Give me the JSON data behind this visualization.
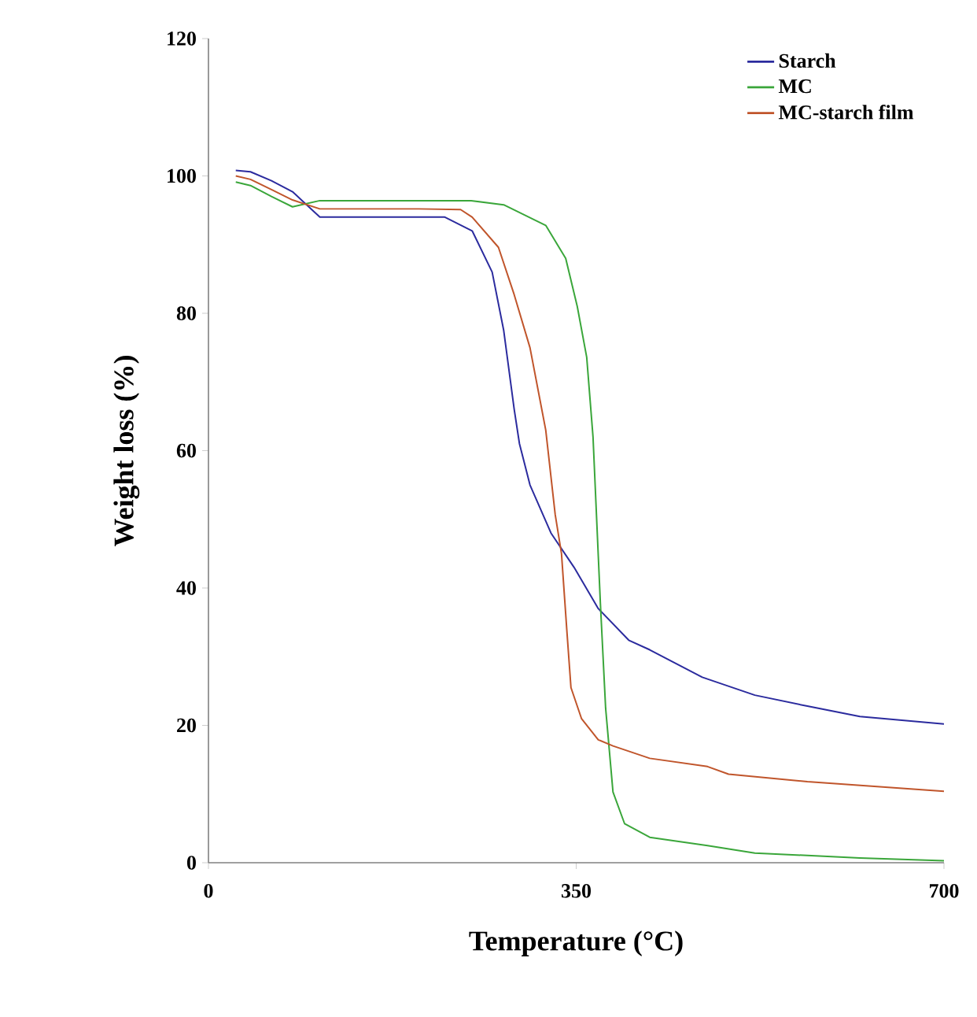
{
  "chart_data": {
    "type": "line",
    "xlabel": "Temperature (°C)",
    "ylabel": "Weight loss (%)",
    "xlim": [
      0,
      700
    ],
    "xticks": [
      0,
      350,
      700
    ],
    "ylim": [
      0,
      120
    ],
    "yticks": [
      0,
      20,
      40,
      60,
      80,
      100,
      120
    ],
    "grid": false,
    "legend": "top right",
    "marker": "none",
    "line_style": "solid",
    "series": [
      {
        "name": "Starch",
        "color": "#2b2b9e",
        "x": [
          26,
          40,
          60,
          80,
          106,
          150,
          195,
          225,
          251,
          270,
          281,
          291,
          296,
          306,
          326,
          348,
          371,
          400,
          420,
          470,
          520,
          570,
          620,
          700
        ],
        "values": [
          100.8,
          100.6,
          99.3,
          97.7,
          94,
          94,
          94,
          94,
          92,
          86,
          77.5,
          66,
          61,
          55,
          48,
          43,
          37,
          32.4,
          31,
          27,
          24.4,
          22.8,
          21.3,
          20.2
        ]
      },
      {
        "name": "MC",
        "color": "#3aa63a",
        "x": [
          26,
          40,
          60,
          80,
          106,
          150,
          200,
          250,
          281,
          321,
          340,
          351,
          360,
          366,
          371,
          373,
          378,
          385,
          396,
          420,
          475,
          520,
          620,
          700
        ],
        "values": [
          99.1,
          98.6,
          97,
          95.5,
          96.4,
          96.4,
          96.4,
          96.4,
          95.8,
          92.8,
          88,
          81,
          73.6,
          62,
          44.7,
          37.8,
          22.5,
          10.3,
          5.7,
          3.7,
          2.5,
          1.4,
          0.7,
          0.3
        ]
      },
      {
        "name": "MC-starch film",
        "color": "#c0552b",
        "x": [
          26,
          40,
          60,
          80,
          106,
          150,
          200,
          240,
          251,
          276,
          291,
          306,
          321,
          330,
          336,
          341,
          345,
          355,
          371,
          385,
          420,
          475,
          495,
          570,
          700
        ],
        "values": [
          100,
          99.5,
          98,
          96.5,
          95.2,
          95.2,
          95.2,
          95.1,
          94,
          89.6,
          82.7,
          75,
          63,
          50.7,
          45,
          34,
          25.5,
          21,
          17.9,
          17,
          15.2,
          14,
          12.9,
          11.8,
          10.4
        ]
      }
    ]
  }
}
